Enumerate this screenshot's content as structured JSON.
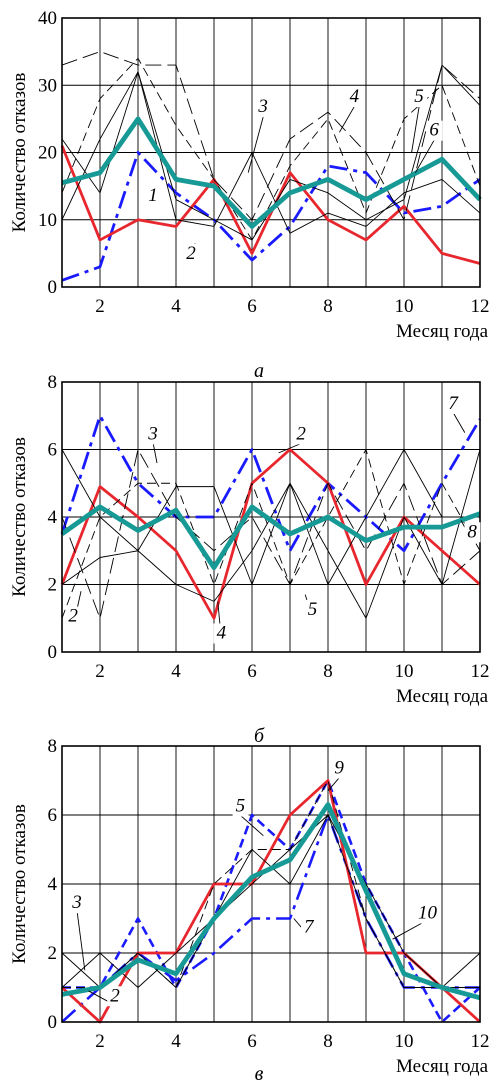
{
  "chart_data": [
    {
      "type": "line",
      "caption": "а",
      "xlabel": "Месяц года",
      "ylabel": "Количество отказов",
      "xlim": [
        1,
        12
      ],
      "ylim": [
        0,
        40
      ],
      "xticks": [
        2,
        4,
        6,
        8,
        10,
        12
      ],
      "yticks": [
        0,
        10,
        20,
        30,
        40
      ],
      "x": [
        1,
        2,
        3,
        4,
        5,
        6,
        7,
        8,
        9,
        10,
        11,
        12
      ],
      "series": [
        {
          "label": "1",
          "color": "#1a1aff",
          "style": "dashdot",
          "width": 2.8,
          "values": [
            1,
            3,
            20,
            14,
            10,
            4,
            9,
            18,
            17,
            11,
            12,
            16
          ]
        },
        {
          "label": "2",
          "color": "#e8262d",
          "style": "solid",
          "width": 2.8,
          "values": [
            21,
            7,
            10,
            9,
            16,
            5,
            17,
            10,
            7,
            12,
            5,
            3.5
          ]
        },
        {
          "label": "3",
          "color": "#000000",
          "style": "solid",
          "width": 0.9,
          "values": [
            10,
            22,
            32,
            10,
            9,
            20,
            8,
            11,
            9,
            14,
            16,
            11
          ]
        },
        {
          "label": "4",
          "color": "#000000",
          "style": "longdash",
          "width": 0.9,
          "values": [
            33,
            35,
            33,
            33,
            16,
            10,
            22,
            26,
            20,
            10,
            33,
            28
          ]
        },
        {
          "label": "5",
          "color": "#000000",
          "style": "dash",
          "width": 0.9,
          "values": [
            14,
            28,
            34,
            24,
            16,
            7,
            18,
            25,
            11,
            25,
            30,
            15
          ]
        },
        {
          "label": "6",
          "color": "#000000",
          "style": "solid",
          "width": 0.9,
          "values": [
            22,
            14,
            32,
            13,
            10,
            7,
            16,
            14,
            10,
            13,
            33,
            27
          ]
        },
        {
          "label": "",
          "color": "#179a96",
          "style": "solid",
          "width": 4.8,
          "values": [
            15.5,
            17,
            25,
            16,
            15,
            9,
            14,
            16,
            13,
            16,
            19,
            13
          ]
        }
      ],
      "annotations": [
        {
          "text": "1",
          "x": 3.2,
          "y": 12.5,
          "tx": 3.4,
          "ty": 12.8
        },
        {
          "text": "2",
          "x": 4.5,
          "y": 6.5,
          "tx": 4.4,
          "ty": 4.2
        },
        {
          "text": "3",
          "x": 5.9,
          "y": 17,
          "tx": 6.3,
          "ty": 26
        },
        {
          "text": "4",
          "x": 8.3,
          "y": 23,
          "tx": 8.7,
          "ty": 27.5
        },
        {
          "text": "5",
          "x": 10.2,
          "y": 20,
          "tx": 10.4,
          "ty": 27.5
        },
        {
          "text": "6",
          "x": 10.3,
          "y": 17,
          "tx": 10.8,
          "ty": 22.5
        }
      ]
    },
    {
      "type": "line",
      "caption": "б",
      "xlabel": "Месяц года",
      "ylabel": "Количество отказов",
      "xlim": [
        1,
        12
      ],
      "ylim": [
        0,
        8
      ],
      "xticks": [
        2,
        4,
        6,
        8,
        10,
        12
      ],
      "yticks": [
        0,
        2,
        4,
        6,
        8
      ],
      "x": [
        1,
        2,
        3,
        4,
        5,
        6,
        7,
        8,
        9,
        10,
        11,
        12
      ],
      "series": [
        {
          "label": "7",
          "color": "#1a1aff",
          "style": "dashdot",
          "width": 2.8,
          "values": [
            3.5,
            7,
            5,
            4,
            4,
            6,
            3,
            5,
            4,
            3,
            5,
            6.9
          ]
        },
        {
          "label": "2",
          "color": "#e8262d",
          "style": "solid",
          "width": 2.8,
          "values": [
            2,
            4.9,
            4,
            3,
            1,
            5,
            6,
            5,
            2,
            4,
            3,
            2
          ]
        },
        {
          "label": "3",
          "color": "#000000",
          "style": "solid",
          "width": 0.9,
          "values": [
            2,
            2.8,
            3,
            4.9,
            4.9,
            2,
            5,
            2,
            4,
            6,
            4,
            4
          ]
        },
        {
          "label": "4",
          "color": "#000000",
          "style": "solid",
          "width": 0.9,
          "values": [
            6,
            4,
            3,
            2,
            1.5,
            3,
            5,
            3,
            1,
            4,
            2,
            6
          ]
        },
        {
          "label": "5",
          "color": "#000000",
          "style": "dash",
          "width": 0.9,
          "values": [
            1,
            4,
            5,
            5,
            2,
            5,
            2,
            4,
            6,
            2,
            5,
            3
          ]
        },
        {
          "label": "8",
          "color": "#000000",
          "style": "longdash",
          "width": 0.9,
          "values": [
            4,
            1,
            6,
            4,
            3,
            4,
            2,
            5,
            3,
            5,
            2,
            3
          ]
        },
        {
          "label": "",
          "color": "#179a96",
          "style": "solid",
          "width": 4.8,
          "values": [
            3.5,
            4.3,
            3.6,
            4.2,
            2.5,
            4.3,
            3.5,
            4,
            3.3,
            3.7,
            3.7,
            4.1
          ]
        }
      ],
      "annotations": [
        {
          "text": "3",
          "x": 3.5,
          "y": 5.6,
          "tx": 3.4,
          "ty": 6.3
        },
        {
          "text": "2",
          "x": 6.7,
          "y": 5.9,
          "tx": 7.3,
          "ty": 6.3
        },
        {
          "text": "7",
          "x": 11.6,
          "y": 6.5,
          "tx": 11.3,
          "ty": 7.2
        },
        {
          "text": "8",
          "x": 11.5,
          "y": 3.9,
          "tx": 11.8,
          "ty": 3.4
        },
        {
          "text": "2",
          "x": 1.5,
          "y": 1.8,
          "tx": 1.3,
          "ty": 0.9
        },
        {
          "text": "4",
          "x": 5.1,
          "y": 1.5,
          "tx": 5.2,
          "ty": 0.4
        },
        {
          "text": "5",
          "x": 7.4,
          "y": 1.7,
          "tx": 7.6,
          "ty": 1.1
        }
      ]
    },
    {
      "type": "line",
      "caption": "в",
      "xlabel": "Месяц года",
      "ylabel": "Количество отказов",
      "xlim": [
        1,
        12
      ],
      "ylim": [
        0,
        8
      ],
      "xticks": [
        2,
        4,
        6,
        8,
        10,
        12
      ],
      "yticks": [
        0,
        2,
        4,
        6,
        8
      ],
      "x": [
        1,
        2,
        3,
        4,
        5,
        6,
        7,
        8,
        9,
        10,
        11,
        12
      ],
      "series": [
        {
          "label": "5",
          "color": "#1a1aff",
          "style": "dash",
          "width": 2.6,
          "values": [
            1,
            1,
            3,
            1,
            3,
            6,
            5,
            7,
            4,
            2,
            0,
            1
          ]
        },
        {
          "label": "7",
          "color": "#1a1aff",
          "style": "dashdot",
          "width": 2.6,
          "values": [
            0,
            1,
            2,
            1.2,
            2,
            3,
            3,
            6,
            3,
            1,
            1,
            1
          ]
        },
        {
          "label": "2",
          "color": "#e8262d",
          "style": "solid",
          "width": 2.8,
          "values": [
            1,
            0,
            2,
            2,
            4,
            4,
            6,
            7,
            2,
            2,
            1,
            0
          ]
        },
        {
          "label": "3",
          "color": "#000000",
          "style": "solid",
          "width": 0.9,
          "values": [
            2,
            1,
            2,
            1,
            3,
            4,
            5,
            6,
            4,
            2,
            1,
            1
          ]
        },
        {
          "label": "10",
          "color": "#000000",
          "style": "solid",
          "width": 0.9,
          "values": [
            1,
            2,
            1,
            2,
            3,
            5,
            4,
            6,
            3,
            1,
            1,
            2
          ]
        },
        {
          "label": "9",
          "color": "#000000",
          "style": "dash",
          "width": 0.9,
          "values": [
            1,
            1,
            2,
            1,
            4,
            5,
            5,
            7,
            3,
            1,
            1,
            1
          ]
        },
        {
          "label": "",
          "color": "#179a96",
          "style": "solid",
          "width": 4.8,
          "values": [
            0.8,
            1,
            1.8,
            1.4,
            3,
            4.2,
            4.7,
            6.3,
            3.8,
            1.4,
            1,
            0.7
          ]
        }
      ],
      "annotations": [
        {
          "text": "9",
          "x": 8.0,
          "y": 6.7,
          "tx": 8.3,
          "ty": 7.2
        },
        {
          "text": "5",
          "x": 6.3,
          "y": 5.4,
          "tx": 5.7,
          "ty": 6.1
        },
        {
          "text": "7",
          "x": 7.1,
          "y": 3.0,
          "tx": 7.5,
          "ty": 2.6
        },
        {
          "text": "10",
          "x": 9.7,
          "y": 2.4,
          "tx": 10.5,
          "ty": 3.0
        },
        {
          "text": "3",
          "x": 1.6,
          "y": 1.5,
          "tx": 1.4,
          "ty": 3.3
        },
        {
          "text": "2",
          "x": 1.7,
          "y": 0.9,
          "tx": 2.4,
          "ty": 0.6
        }
      ]
    }
  ]
}
